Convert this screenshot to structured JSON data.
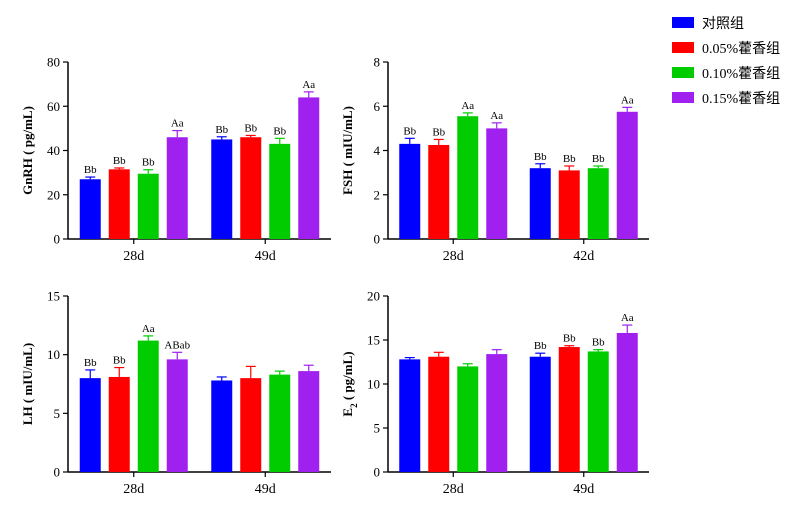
{
  "legend": [
    {
      "label": "对照组",
      "color": "#0000ff"
    },
    {
      "label": "0.05%藿香组",
      "color": "#ff0000"
    },
    {
      "label": "0.10%藿香组",
      "color": "#00cc00"
    },
    {
      "label": "0.15%藿香组",
      "color": "#a020f0"
    }
  ],
  "chart_data": [
    {
      "type": "bar",
      "ylabel": "GnRH ( pg/mL)",
      "ylim": [
        0,
        80
      ],
      "yticks": [
        0,
        20,
        40,
        60,
        80
      ],
      "categories": [
        "28d",
        "49d"
      ],
      "series": [
        {
          "name": "对照组",
          "values": [
            27,
            45
          ],
          "errors": [
            1,
            1.2
          ],
          "labels": [
            "Bb",
            "Bb"
          ]
        },
        {
          "name": "0.05%藿香组",
          "values": [
            31.5,
            46
          ],
          "errors": [
            0.6,
            0.8
          ],
          "labels": [
            "Bb",
            "Bb"
          ]
        },
        {
          "name": "0.10%藿香组",
          "values": [
            29.5,
            43
          ],
          "errors": [
            1.8,
            2.5
          ],
          "labels": [
            "Bb",
            "Bb"
          ]
        },
        {
          "name": "0.15%藿香组",
          "values": [
            46,
            64
          ],
          "errors": [
            3,
            2.5
          ],
          "labels": [
            "Aa",
            "Aa"
          ]
        }
      ]
    },
    {
      "type": "bar",
      "ylabel": "FSH ( mIU/mL)",
      "ylim": [
        0,
        8
      ],
      "yticks": [
        0,
        2,
        4,
        6,
        8
      ],
      "categories": [
        "28d",
        "42d"
      ],
      "series": [
        {
          "name": "对照组",
          "values": [
            4.3,
            3.2
          ],
          "errors": [
            0.25,
            0.2
          ],
          "labels": [
            "Bb",
            "Bb"
          ]
        },
        {
          "name": "0.05%藿香组",
          "values": [
            4.25,
            3.1
          ],
          "errors": [
            0.25,
            0.2
          ],
          "labels": [
            "Bb",
            "Bb"
          ]
        },
        {
          "name": "0.10%藿香组",
          "values": [
            5.55,
            3.2
          ],
          "errors": [
            0.15,
            0.1
          ],
          "labels": [
            "Aa",
            "Bb"
          ]
        },
        {
          "name": "0.15%藿香组",
          "values": [
            5.0,
            5.75
          ],
          "errors": [
            0.25,
            0.2
          ],
          "labels": [
            "Aa",
            "Aa"
          ]
        }
      ]
    },
    {
      "type": "bar",
      "ylabel": "LH ( mIU/mL)",
      "ylim": [
        0,
        15
      ],
      "yticks": [
        0,
        5,
        10,
        15
      ],
      "categories": [
        "28d",
        "49d"
      ],
      "series": [
        {
          "name": "对照组",
          "values": [
            8.0,
            7.8
          ],
          "errors": [
            0.7,
            0.3
          ],
          "labels": [
            "Bb",
            ""
          ]
        },
        {
          "name": "0.05%藿香组",
          "values": [
            8.1,
            8.0
          ],
          "errors": [
            0.8,
            1.0
          ],
          "labels": [
            "Bb",
            ""
          ]
        },
        {
          "name": "0.10%藿香组",
          "values": [
            11.2,
            8.3
          ],
          "errors": [
            0.4,
            0.3
          ],
          "labels": [
            "Aa",
            ""
          ]
        },
        {
          "name": "0.15%藿香组",
          "values": [
            9.6,
            8.6
          ],
          "errors": [
            0.6,
            0.5
          ],
          "labels": [
            "ABab",
            ""
          ]
        }
      ]
    },
    {
      "type": "bar",
      "ylabel": "E2 ( pg/mL)",
      "ylabel_main": "E",
      "ylabel_sub": "2",
      "ylabel_rest": " ( pg/mL)",
      "ylim": [
        0,
        20
      ],
      "yticks": [
        0,
        5,
        10,
        15,
        20
      ],
      "categories": [
        "28d",
        "49d"
      ],
      "series": [
        {
          "name": "对照组",
          "values": [
            12.8,
            13.1
          ],
          "errors": [
            0.2,
            0.4
          ],
          "labels": [
            "",
            "Bb"
          ]
        },
        {
          "name": "0.05%藿香组",
          "values": [
            13.1,
            14.2
          ],
          "errors": [
            0.5,
            0.15
          ],
          "labels": [
            "",
            "Bb"
          ]
        },
        {
          "name": "0.10%藿香组",
          "values": [
            12.0,
            13.7
          ],
          "errors": [
            0.3,
            0.2
          ],
          "labels": [
            "",
            "Bb"
          ]
        },
        {
          "name": "0.15%藿香组",
          "values": [
            13.4,
            15.8
          ],
          "errors": [
            0.5,
            0.9
          ],
          "labels": [
            "",
            "Aa"
          ]
        }
      ]
    }
  ]
}
